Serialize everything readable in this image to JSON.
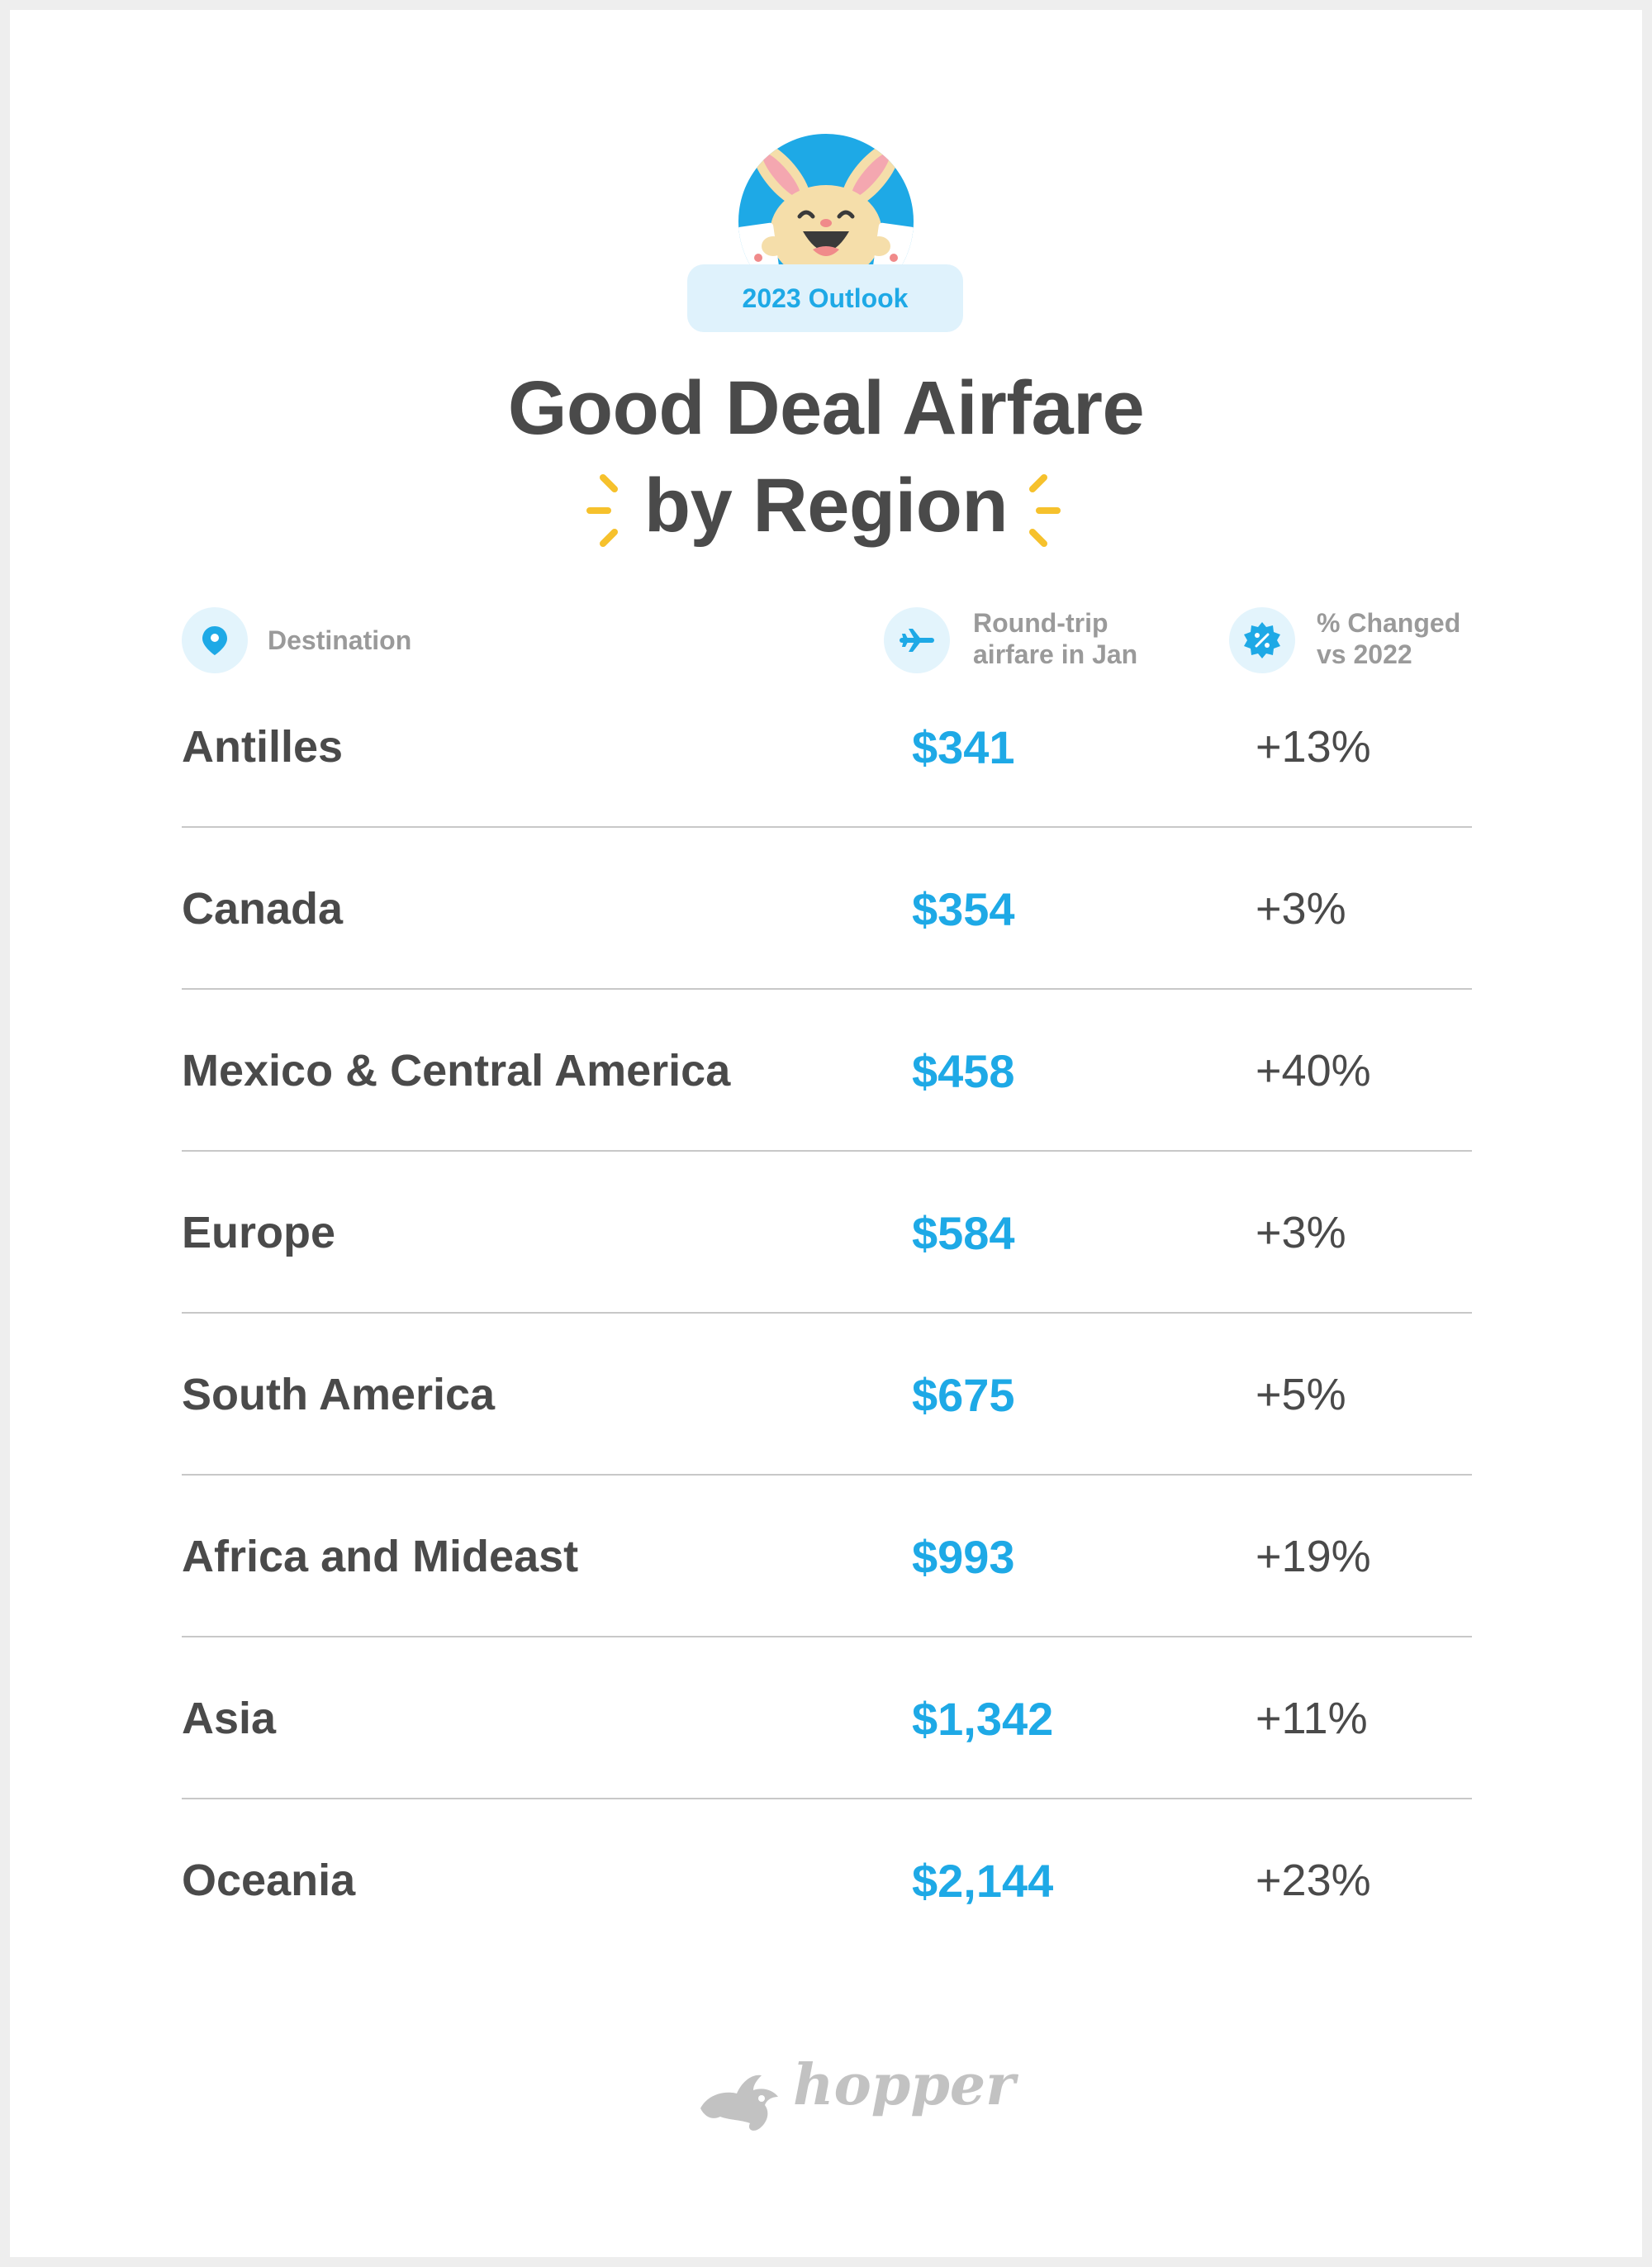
{
  "badge": "2023 Outlook",
  "title_line1": "Good Deal Airfare",
  "title_line2": "by Region",
  "headers": {
    "destination": "Destination",
    "airfare_line1": "Round-trip",
    "airfare_line2": "airfare in Jan",
    "change_line1": "% Changed",
    "change_line2": "vs 2022"
  },
  "logo": "hopper",
  "colors": {
    "accent": "#1ea9e6",
    "text": "#4a4a4a",
    "muted": "#9a9a9a",
    "sparkle": "#f6c12c"
  },
  "chart_data": {
    "type": "table",
    "columns": [
      "Destination",
      "Round-trip airfare in Jan",
      "% Changed vs 2022"
    ],
    "rows": [
      {
        "region": "Antilles",
        "airfare": "$341",
        "change": "+13%"
      },
      {
        "region": "Canada",
        "airfare": "$354",
        "change": "+3%"
      },
      {
        "region": "Mexico & Central America",
        "airfare": "$458",
        "change": "+40%"
      },
      {
        "region": "Europe",
        "airfare": "$584",
        "change": "+3%"
      },
      {
        "region": "South America",
        "airfare": "$675",
        "change": "+5%"
      },
      {
        "region": "Africa and Mideast",
        "airfare": "$993",
        "change": "+19%"
      },
      {
        "region": "Asia",
        "airfare": "$1,342",
        "change": "+11%"
      },
      {
        "region": "Oceania",
        "airfare": "$2,144",
        "change": "+23%"
      }
    ]
  }
}
